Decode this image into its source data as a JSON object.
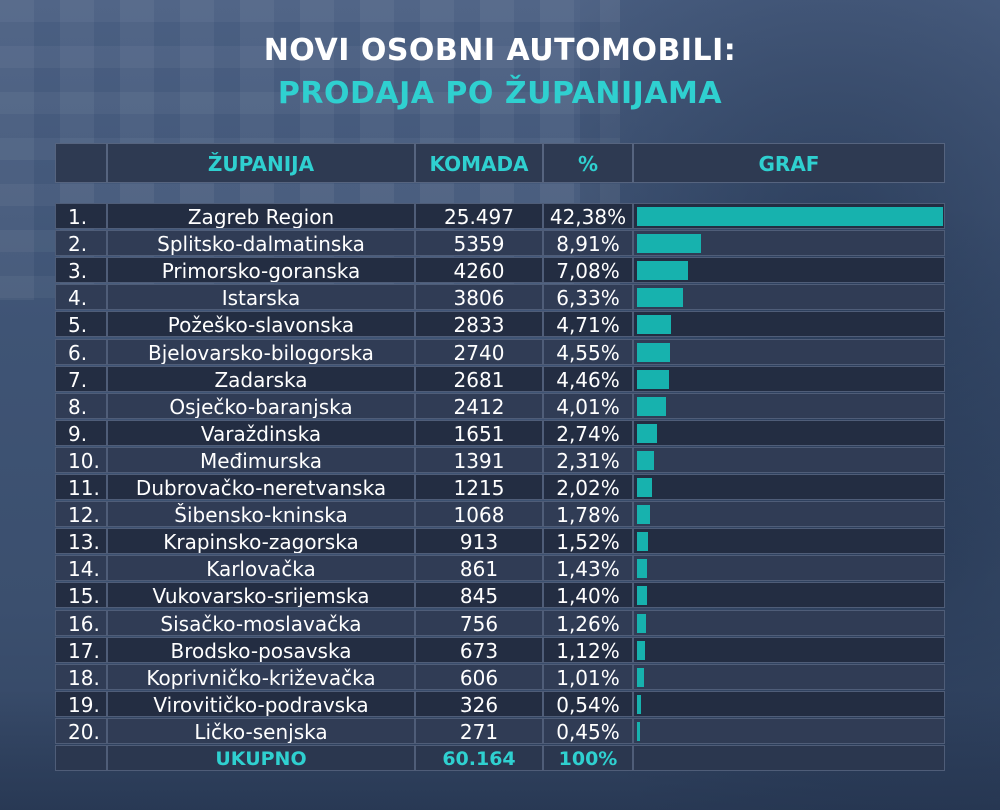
{
  "title_line1": "NOVI OSOBNI AUTOMOBILI:",
  "title_line2": "PRODAJA PO ŽUPANIJAMA",
  "headers": {
    "rank": "",
    "county": "ŽUPANIJA",
    "qty": "KOMADA",
    "pct": "%",
    "graf": "GRAF"
  },
  "colors": {
    "accent": "#2fd0d0",
    "bar": "#17b2ae",
    "row_dark": "#232d42",
    "row_light": "#303c55"
  },
  "chart_data": {
    "type": "bar",
    "orientation": "horizontal",
    "categories": [
      "Zagreb Region",
      "Splitsko-dalmatinska",
      "Primorsko-goranska",
      "Istarska",
      "Požeško-slavonska",
      "Bjelovarsko-bilogorska",
      "Zadarska",
      "Osječko-baranjska",
      "Varaždinska",
      "Međimurska",
      "Dubrovačko-neretvanska",
      "Šibensko-kninska",
      "Krapinsko-zagorska",
      "Karlovačka",
      "Vukovarsko-srijemska",
      "Sisačko-moslavačka",
      "Brodsko-posavska",
      "Koprivničko-križevačka",
      "Virovitičko-podravska",
      "Ličko-senjska"
    ],
    "ranks": [
      "1.",
      "2.",
      "3.",
      "4.",
      "5.",
      "6.",
      "7.",
      "8.",
      "9.",
      "10.",
      "11.",
      "12.",
      "13.",
      "14.",
      "15.",
      "16.",
      "17.",
      "18.",
      "19.",
      "20."
    ],
    "values_label": [
      "25.497",
      "5359",
      "4260",
      "3806",
      "2833",
      "2740",
      "2681",
      "2412",
      "1651",
      "1391",
      "1215",
      "1068",
      "913",
      "861",
      "845",
      "756",
      "673",
      "606",
      "326",
      "271"
    ],
    "values": [
      25497,
      5359,
      4260,
      3806,
      2833,
      2740,
      2681,
      2412,
      1651,
      1391,
      1215,
      1068,
      913,
      861,
      845,
      756,
      673,
      606,
      326,
      271
    ],
    "percent_label": [
      "42,38%",
      "8,91%",
      "7,08%",
      "6,33%",
      "4,71%",
      "4,55%",
      "4,46%",
      "4,01%",
      "2,74%",
      "2,31%",
      "2,02%",
      "1,78%",
      "1,52%",
      "1,43%",
      "1,40%",
      "1,26%",
      "1,12%",
      "1,01%",
      "0,54%",
      "0,45%"
    ],
    "percent": [
      42.38,
      8.91,
      7.08,
      6.33,
      4.71,
      4.55,
      4.46,
      4.01,
      2.74,
      2.31,
      2.02,
      1.78,
      1.52,
      1.43,
      1.4,
      1.26,
      1.12,
      1.01,
      0.54,
      0.45
    ],
    "total_label": "UKUPNO",
    "total_qty": "60.164",
    "total_pct": "100%",
    "xlim": [
      0,
      42.38
    ]
  }
}
